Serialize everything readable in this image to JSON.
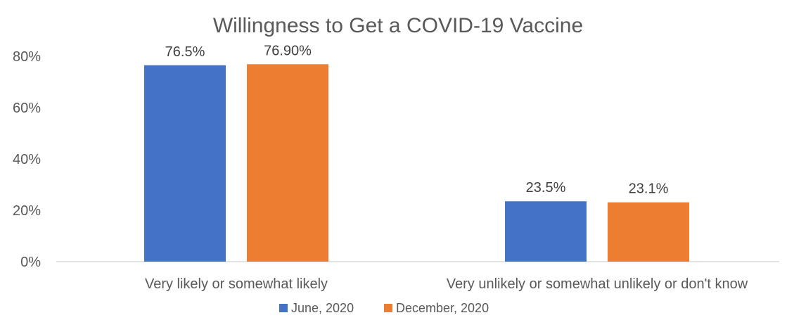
{
  "chart_data": {
    "type": "bar",
    "title": "Willingness to Get a COVID-19 Vaccine",
    "categories": [
      "Very likely or somewhat likely",
      "Very unlikely or somewhat unlikely or don't know"
    ],
    "series": [
      {
        "name": "June, 2020",
        "values": [
          76.5,
          23.5
        ],
        "labels": [
          "76.5%",
          "23.5%"
        ],
        "color": "#4472C4"
      },
      {
        "name": "December, 2020",
        "values": [
          76.9,
          23.1
        ],
        "labels": [
          "76.90%",
          "23.1%"
        ],
        "color": "#ED7D31"
      }
    ],
    "y_ticks": [
      {
        "value": 0,
        "label": "0%"
      },
      {
        "value": 20,
        "label": "20%"
      },
      {
        "value": 40,
        "label": "40%"
      },
      {
        "value": 60,
        "label": "60%"
      },
      {
        "value": 80,
        "label": "80%"
      }
    ],
    "ylim": [
      0,
      80
    ],
    "grid": false,
    "legend": "bottom"
  }
}
